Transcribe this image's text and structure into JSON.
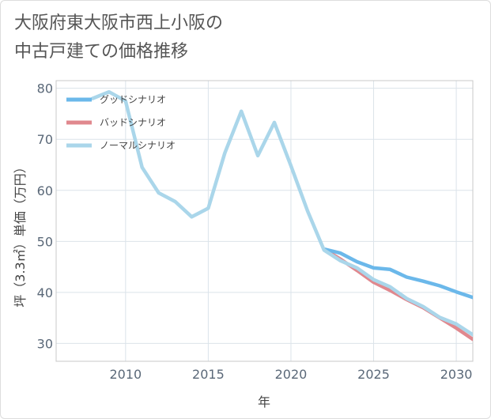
{
  "title_lines": [
    "大阪府東大阪市西上小阪の",
    "中古戸建ての価格推移"
  ],
  "chart_data": {
    "type": "line",
    "title": "大阪府東大阪市西上小阪の中古戸建ての価格推移",
    "xlabel": "年",
    "ylabel": "坪（3.3㎡）単価（万円）",
    "xlim": [
      2005.8,
      2031
    ],
    "ylim": [
      26.5,
      81.5
    ],
    "xticks": [
      2010,
      2015,
      2020,
      2025,
      2030
    ],
    "yticks": [
      30,
      40,
      50,
      60,
      70,
      80
    ],
    "grid": true,
    "legend_position": "top-left",
    "series": [
      {
        "name": "グッドシナリオ",
        "color": "#6bb8ea",
        "x": [
          2022,
          2023,
          2024,
          2025,
          2026,
          2027,
          2028,
          2029,
          2030,
          2031
        ],
        "y": [
          48.5,
          47.7,
          46.0,
          44.8,
          44.5,
          43.0,
          42.2,
          41.3,
          40.1,
          39.0
        ]
      },
      {
        "name": "バッドシナリオ",
        "color": "#e0888e",
        "x": [
          2022,
          2023,
          2024,
          2025,
          2026,
          2027,
          2028,
          2029,
          2030,
          2031
        ],
        "y": [
          48.5,
          46.5,
          44.3,
          42.0,
          40.4,
          38.6,
          37.0,
          35.0,
          33.0,
          30.8
        ]
      },
      {
        "name": "ノーマルシナリオ",
        "color": "#aad6ea",
        "x": [
          2008,
          2009,
          2010,
          2011,
          2012,
          2013,
          2014,
          2015,
          2016,
          2017,
          2018,
          2019,
          2020,
          2021,
          2022,
          2023,
          2024,
          2025,
          2026,
          2027,
          2028,
          2029,
          2030,
          2031
        ],
        "y": [
          78.0,
          79.3,
          77.5,
          64.5,
          59.5,
          57.8,
          54.8,
          56.5,
          67.3,
          75.5,
          66.8,
          73.3,
          64.8,
          56.0,
          48.3,
          46.2,
          44.8,
          42.5,
          41.1,
          38.8,
          37.2,
          35.1,
          33.8,
          31.7
        ]
      }
    ]
  }
}
